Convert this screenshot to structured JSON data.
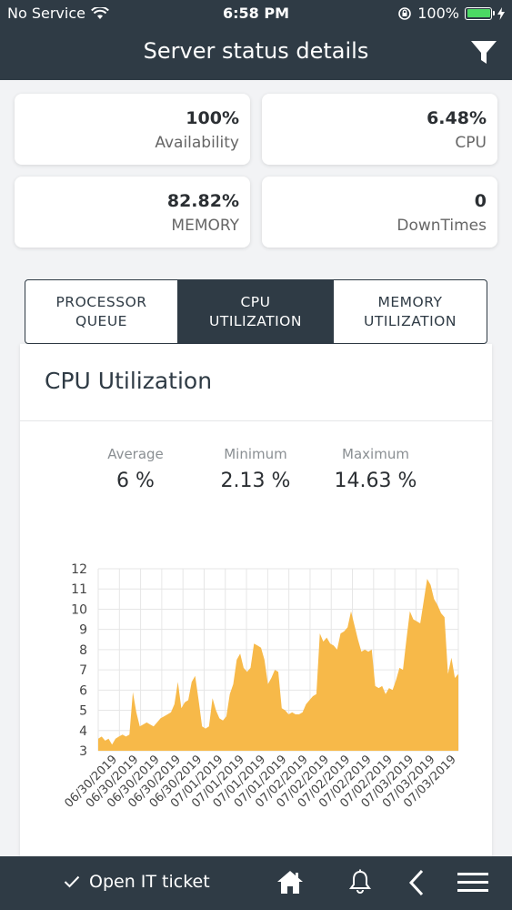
{
  "status_bar": {
    "carrier": "No Service",
    "time": "6:58 PM",
    "battery": "100%"
  },
  "header": {
    "title": "Server status details"
  },
  "stats": [
    {
      "value": "100%",
      "label": "Availability"
    },
    {
      "value": "6.48%",
      "label": "CPU"
    },
    {
      "value": "82.82%",
      "label": "MEMORY"
    },
    {
      "value": "0",
      "label": "DownTimes"
    }
  ],
  "tabs": [
    {
      "line1": "PROCESSOR",
      "line2": "QUEUE"
    },
    {
      "line1": "CPU",
      "line2": "UTILIZATION"
    },
    {
      "line1": "MEMORY",
      "line2": "UTILIZATION"
    }
  ],
  "panel": {
    "title": "CPU Utilization",
    "average_label": "Average",
    "average_value": "6 %",
    "minimum_label": "Minimum",
    "minimum_value": "2.13 %",
    "maximum_label": "Maximum",
    "maximum_value": "14.63 %"
  },
  "bottom_bar": {
    "ticket_label": "Open IT ticket"
  },
  "colors": {
    "primary": "#2f3b45",
    "chart_fill": "#f7b949",
    "battery": "#4cd964"
  },
  "chart_data": {
    "type": "area",
    "y_range": [
      3,
      12
    ],
    "y_ticks": [
      3,
      4,
      5,
      6,
      7,
      8,
      9,
      10,
      11,
      12
    ],
    "x_tick_labels": [
      "06/30/2019",
      "06/30/2019",
      "06/30/2019",
      "06/30/2019",
      "06/30/2019",
      "07/01/2019",
      "07/01/2019",
      "07/01/2019",
      "07/01/2019",
      "07/02/2019",
      "07/02/2019",
      "07/02/2019",
      "07/02/2019",
      "07/02/2019",
      "07/03/2019",
      "07/03/2019",
      "07/03/2019"
    ],
    "grid": true,
    "values": [
      3.6,
      3.7,
      3.5,
      3.6,
      3.3,
      3.6,
      3.7,
      3.8,
      3.7,
      3.8,
      5.9,
      4.9,
      4.2,
      4.3,
      4.4,
      4.3,
      4.2,
      4.4,
      4.6,
      4.7,
      4.8,
      4.9,
      5.3,
      6.4,
      5.1,
      5.4,
      5.5,
      6.4,
      6.7,
      5.5,
      4.2,
      4.1,
      4.2,
      5.6,
      5.0,
      4.6,
      4.5,
      4.7,
      5.8,
      6.3,
      7.5,
      7.8,
      7.1,
      6.9,
      7.1,
      8.3,
      8.2,
      8.1,
      7.5,
      6.3,
      6.6,
      7.0,
      6.9,
      5.1,
      5.0,
      4.8,
      4.9,
      4.8,
      4.8,
      4.9,
      5.3,
      5.5,
      5.7,
      5.8,
      8.8,
      8.4,
      8.6,
      8.3,
      8.2,
      8.0,
      8.8,
      8.9,
      9.1,
      9.9,
      9.2,
      8.5,
      7.9,
      8.0,
      7.9,
      8.0,
      6.2,
      6.1,
      6.2,
      5.8,
      6.1,
      6.0,
      6.5,
      7.1,
      7.0,
      8.5,
      9.9,
      9.5,
      9.4,
      9.3,
      10.4,
      11.5,
      11.2,
      10.5,
      10.2,
      9.8,
      9.6,
      6.8,
      7.6,
      6.6,
      6.8
    ]
  }
}
